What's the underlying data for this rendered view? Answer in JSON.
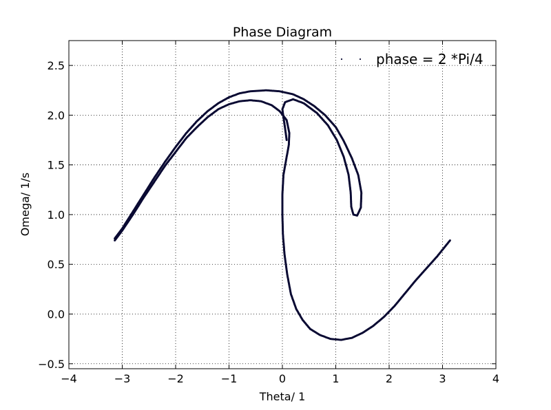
{
  "chart_data": {
    "type": "scatter",
    "title": "Phase Diagram",
    "xlabel": "Theta/ 1",
    "ylabel": "Omega/ 1/s",
    "xlim": [
      -4,
      4
    ],
    "ylim": [
      -0.55,
      2.75
    ],
    "xticks": [
      -4,
      -3,
      -2,
      -1,
      0,
      1,
      2,
      3,
      4
    ],
    "xtick_labels": [
      "−4",
      "−3",
      "−2",
      "−1",
      "0",
      "1",
      "2",
      "3",
      "4"
    ],
    "yticks": [
      -0.5,
      0.0,
      0.5,
      1.0,
      1.5,
      2.0,
      2.5
    ],
    "ytick_labels": [
      "−0.5",
      "0.0",
      "0.5",
      "1.0",
      "1.5",
      "2.0",
      "2.5"
    ],
    "grid": true,
    "legend_position": "top-right",
    "marker_color": "#0a0a33",
    "series": [
      {
        "name": "phase = 2 *Pi/4",
        "outer_curve": [
          [
            -3.14,
            0.76
          ],
          [
            -3.0,
            0.86
          ],
          [
            -2.8,
            1.03
          ],
          [
            -2.6,
            1.2
          ],
          [
            -2.4,
            1.37
          ],
          [
            -2.2,
            1.53
          ],
          [
            -2.0,
            1.68
          ],
          [
            -1.8,
            1.82
          ],
          [
            -1.6,
            1.94
          ],
          [
            -1.4,
            2.04
          ],
          [
            -1.2,
            2.12
          ],
          [
            -1.0,
            2.18
          ],
          [
            -0.8,
            2.22
          ],
          [
            -0.6,
            2.24
          ],
          [
            -0.3,
            2.25
          ],
          [
            -0.05,
            2.24
          ],
          [
            0.2,
            2.21
          ],
          [
            0.4,
            2.16
          ],
          [
            0.6,
            2.09
          ],
          [
            0.8,
            2.0
          ],
          [
            1.0,
            1.88
          ],
          [
            1.15,
            1.74
          ],
          [
            1.3,
            1.57
          ],
          [
            1.42,
            1.4
          ],
          [
            1.48,
            1.22
          ],
          [
            1.47,
            1.07
          ],
          [
            1.4,
            0.99
          ],
          [
            1.33,
            1.0
          ],
          [
            1.29,
            1.08
          ]
        ],
        "inner_curve": [
          [
            1.29,
            1.08
          ],
          [
            1.28,
            1.22
          ],
          [
            1.24,
            1.4
          ],
          [
            1.15,
            1.58
          ],
          [
            1.02,
            1.75
          ],
          [
            0.85,
            1.9
          ],
          [
            0.65,
            2.02
          ],
          [
            0.4,
            2.12
          ],
          [
            0.2,
            2.16
          ],
          [
            0.05,
            2.13
          ],
          [
            0.0,
            2.06
          ],
          [
            0.02,
            1.98
          ],
          [
            0.05,
            1.87
          ],
          [
            0.08,
            1.75
          ]
        ],
        "main_curve": [
          [
            -3.14,
            0.74
          ],
          [
            -3.0,
            0.84
          ],
          [
            -2.8,
            1.0
          ],
          [
            -2.6,
            1.17
          ],
          [
            -2.4,
            1.33
          ],
          [
            -2.2,
            1.49
          ],
          [
            -2.0,
            1.63
          ],
          [
            -1.8,
            1.77
          ],
          [
            -1.6,
            1.88
          ],
          [
            -1.4,
            1.98
          ],
          [
            -1.2,
            2.06
          ],
          [
            -1.0,
            2.11
          ],
          [
            -0.8,
            2.14
          ],
          [
            -0.6,
            2.15
          ],
          [
            -0.4,
            2.14
          ],
          [
            -0.2,
            2.1
          ],
          [
            -0.05,
            2.04
          ],
          [
            0.08,
            1.95
          ],
          [
            0.13,
            1.82
          ],
          [
            0.12,
            1.7
          ],
          [
            0.07,
            1.55
          ],
          [
            0.02,
            1.4
          ],
          [
            0.0,
            1.2
          ],
          [
            0.0,
            1.0
          ],
          [
            0.01,
            0.8
          ],
          [
            0.04,
            0.6
          ],
          [
            0.09,
            0.4
          ],
          [
            0.16,
            0.2
          ],
          [
            0.26,
            0.05
          ],
          [
            0.38,
            -0.06
          ],
          [
            0.52,
            -0.15
          ],
          [
            0.7,
            -0.21
          ],
          [
            0.9,
            -0.25
          ],
          [
            1.1,
            -0.26
          ],
          [
            1.3,
            -0.24
          ],
          [
            1.5,
            -0.19
          ],
          [
            1.7,
            -0.12
          ],
          [
            1.9,
            -0.03
          ],
          [
            2.1,
            0.08
          ],
          [
            2.3,
            0.21
          ],
          [
            2.5,
            0.34
          ],
          [
            2.7,
            0.46
          ],
          [
            2.9,
            0.58
          ],
          [
            3.14,
            0.74
          ]
        ]
      }
    ]
  }
}
